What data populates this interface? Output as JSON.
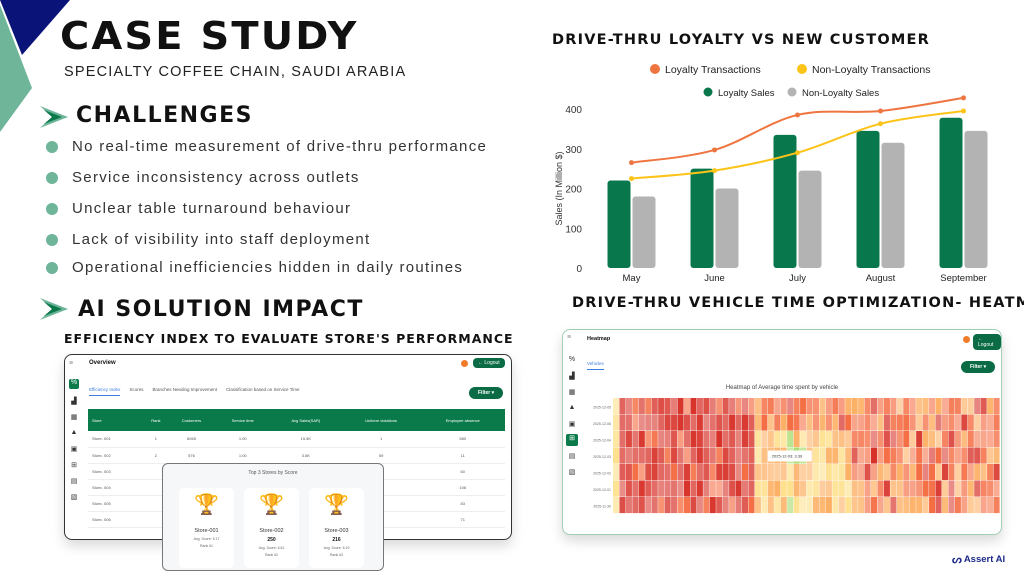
{
  "header": {
    "title": "CASE STUDY",
    "subtitle": "SPECIALTY COFFEE CHAIN, SAUDI ARABIA"
  },
  "challenges": {
    "heading": "CHALLENGES",
    "items": [
      "No real-time measurement of drive-thru performance",
      "Service inconsistency across outlets",
      "Unclear table turnaround behaviour",
      "Lack of visibility into staff deployment",
      "Operational inefficiencies hidden in daily routines"
    ]
  },
  "solution": {
    "heading": "AI SOLUTION IMPACT",
    "subheading": "EFFICIENCY INDEX TO EVALUATE STORE'S PERFORMANCE"
  },
  "dashboard": {
    "title": "Overview",
    "logout": "← Logout",
    "filter": "Filter ▾",
    "tabs": [
      "Efficiency Index",
      "Scores",
      "Branches Needing Improvement",
      "Classification based on Service Time"
    ],
    "columns": [
      "Store",
      "Rank",
      "Customers",
      "Service time",
      "Avg Sales(SAR)",
      "Uniform violations",
      "Employee absence"
    ],
    "rows": [
      [
        "Store- 001",
        "1",
        "6065",
        "1:00",
        "15.5K",
        "1",
        "580"
      ],
      [
        "Store- 002",
        "2",
        "576",
        "1:00",
        "3.6K",
        "59",
        "11"
      ],
      [
        "Store- 003",
        "",
        "",
        "",
        "",
        "0",
        "60"
      ],
      [
        "Store- 004",
        "",
        "",
        "",
        "",
        "1",
        "106"
      ],
      [
        "Store- 005",
        "",
        "",
        "",
        "",
        "9",
        "83"
      ],
      [
        "Store- 006",
        "",
        "",
        "",
        "",
        "19",
        "71"
      ]
    ],
    "top3": {
      "title": "Top 3 Stores by Score",
      "cards": [
        {
          "store": "Store-001",
          "score": "",
          "avg": "Avg. Score: 5.17",
          "rank": "Rank #1",
          "color": "#f2b600"
        },
        {
          "store": "Store-002",
          "score": "250",
          "avg": "Avg. Score: 6.61",
          "rank": "Rank #2",
          "color": "#bdbdbd"
        },
        {
          "store": "Store-003",
          "score": "216",
          "avg": "Avg. Score: 6.19",
          "rank": "Rank #3",
          "color": "#d9806a"
        }
      ]
    }
  },
  "heatmap_panel": {
    "section_title": "DRIVE-THRU VEHICLE TIME OPTIMIZATION- HEATMAP",
    "title": "Heatmap",
    "logout": "← Logout",
    "filter": "Filter ▾",
    "tab": "Vehicles",
    "chart_title": "Heatmap of Average time spent by vehicle",
    "row_labels": [
      "2025-12-05",
      "2025-12-06",
      "2025-12-04",
      "2025-12-03",
      "2025-12-02",
      "2025-12-01",
      "2025-11-30"
    ],
    "tooltip": "2025-12-03: 3.39",
    "colorscale": [
      "#d73027",
      "#f46d43",
      "#fdae61",
      "#fee08b",
      "#a6d96a"
    ]
  },
  "chart_data": {
    "type": "bar+line",
    "title": "DRIVE-THRU LOYALTY VS NEW CUSTOMER",
    "ylabel": "Sales (In Million $)",
    "xlabel": "",
    "categories": [
      "May",
      "June",
      "July",
      "August",
      "September"
    ],
    "ylim": [
      0,
      400
    ],
    "yticks": [
      0,
      100,
      200,
      300,
      400
    ],
    "grid": false,
    "legend": "top",
    "series": [
      {
        "name": "Loyalty Transactions",
        "type": "line",
        "color": "#ef7540",
        "values": [
          265,
          297,
          385,
          395,
          428
        ]
      },
      {
        "name": "Non-Loyalty Transactions",
        "type": "line",
        "color": "#fcc419",
        "values": [
          225,
          245,
          290,
          363,
          395
        ]
      },
      {
        "name": "Loyalty Sales",
        "type": "bar",
        "color": "#08784c",
        "values": [
          220,
          250,
          335,
          345,
          378
        ]
      },
      {
        "name": "Non-Loyalty Sales",
        "type": "bar",
        "color": "#b3b3b3",
        "values": [
          180,
          200,
          245,
          315,
          345
        ]
      }
    ]
  },
  "brand": {
    "logo_text": "Assert AI"
  }
}
